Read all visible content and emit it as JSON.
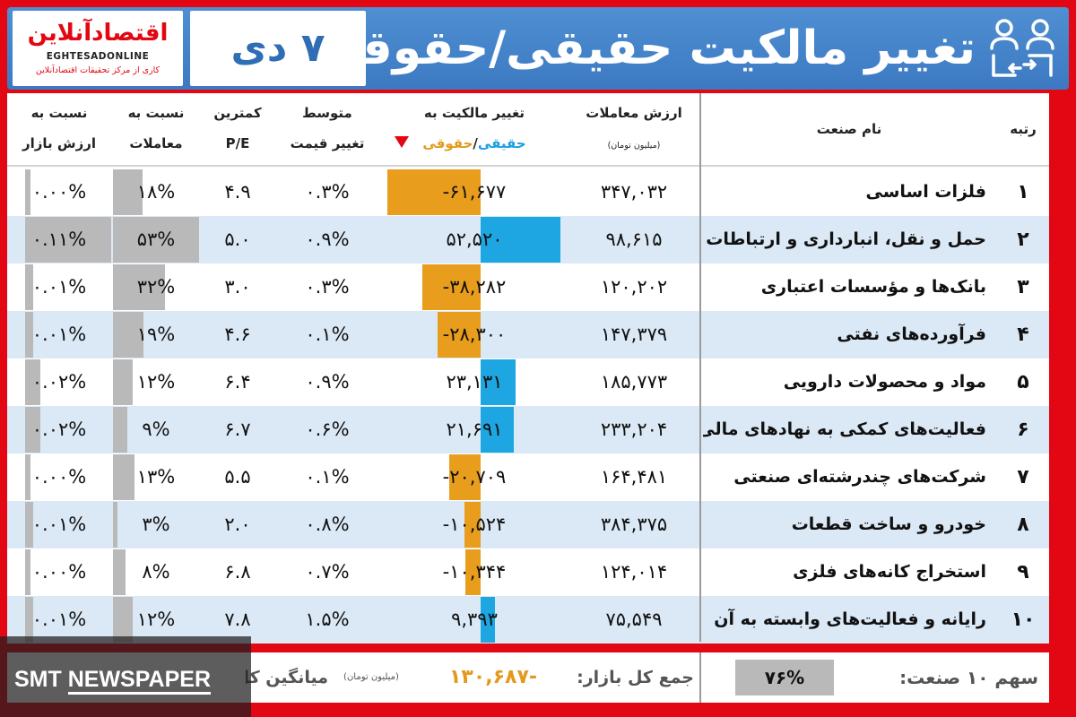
{
  "header": {
    "logo_main": "اقتصادآنلاین",
    "logo_latin": "EGHTESADONLINE",
    "logo_tag": "کاری از مرکز تحقیقات اقتصادآنلاین",
    "date": "۷ دی",
    "title": "تغییر مالکیت حقیقی/حقوقی",
    "icon": "ownership-transfer-icon"
  },
  "columns": {
    "rank": "رتبه",
    "industry": "نام صنعت",
    "trade_value": "ارزش معاملات",
    "trade_value_unit": "(میلیون تومان)",
    "ownership_change_l1": "تغییر مالکیت به",
    "ownership_real": "حقیقی",
    "ownership_sep": "/",
    "ownership_legal": "حقوقی",
    "avg_price_l1": "متوسط",
    "avg_price_l2": "تغییر قیمت",
    "pe_l1": "کمترین",
    "pe_l2": "P/E",
    "trade_share_l1": "نسبت به",
    "trade_share_l2": "معاملات",
    "market_share_l1": "نسبت به",
    "market_share_l2": "ارزش بازار"
  },
  "colors": {
    "real_positive": "#1ea6e2",
    "legal_negative": "#e89d1d",
    "share_bar": "#b9b9b9",
    "row_alt": "#dbe9f6",
    "frame_red": "#e30613",
    "header_blue": "#3c79c2"
  },
  "rows": [
    {
      "rank": "۱",
      "name": "فلزات اساسی",
      "trade_value": "۳۴۷,۰۳۲",
      "change": "-۶۱,۶۷۷",
      "change_value": -61677,
      "avg_price": "۰.۳%",
      "pe": "۴.۹",
      "trade_share": "۱۸%",
      "trade_share_value": 18,
      "market_share": "۰.۰۰%",
      "market_share_value": 0.0
    },
    {
      "rank": "۲",
      "name": "حمل و نقل، انبارداری و ارتباطات",
      "trade_value": "۹۸,۶۱۵",
      "change": "۵۲,۵۲۰",
      "change_value": 52520,
      "avg_price": "۰.۹%",
      "pe": "۵.۰",
      "trade_share": "۵۳%",
      "trade_share_value": 53,
      "market_share": "۰.۱۱%",
      "market_share_value": 0.11
    },
    {
      "rank": "۳",
      "name": "بانک‌ها و مؤسسات اعتباری",
      "trade_value": "۱۲۰,۲۰۲",
      "change": "-۳۸,۲۸۲",
      "change_value": -38282,
      "avg_price": "۰.۳%",
      "pe": "۳.۰",
      "trade_share": "۳۲%",
      "trade_share_value": 32,
      "market_share": "۰.۰۱%",
      "market_share_value": 0.01
    },
    {
      "rank": "۴",
      "name": "فرآورده‌های نفتی",
      "trade_value": "۱۴۷,۳۷۹",
      "change": "-۲۸,۳۰۰",
      "change_value": -28300,
      "avg_price": "۰.۱%",
      "pe": "۴.۶",
      "trade_share": "۱۹%",
      "trade_share_value": 19,
      "market_share": "۰.۰۱%",
      "market_share_value": 0.01
    },
    {
      "rank": "۵",
      "name": "مواد و محصولات دارویی",
      "trade_value": "۱۸۵,۷۷۳",
      "change": "۲۳,۱۳۱",
      "change_value": 23131,
      "avg_price": "۰.۹%",
      "pe": "۶.۴",
      "trade_share": "۱۲%",
      "trade_share_value": 12,
      "market_share": "۰.۰۲%",
      "market_share_value": 0.02
    },
    {
      "rank": "۶",
      "name": "فعالیت‌های کمکی به نهادهای مالی",
      "trade_value": "۲۳۳,۲۰۴",
      "change": "۲۱,۶۹۱",
      "change_value": 21691,
      "avg_price": "۰.۶%",
      "pe": "۶.۷",
      "trade_share": "۹%",
      "trade_share_value": 9,
      "market_share": "۰.۰۲%",
      "market_share_value": 0.02
    },
    {
      "rank": "۷",
      "name": "شرکت‌های چندرشته‌ای صنعتی",
      "trade_value": "۱۶۴,۴۸۱",
      "change": "-۲۰,۷۰۹",
      "change_value": -20709,
      "avg_price": "۰.۱%",
      "pe": "۵.۵",
      "trade_share": "۱۳%",
      "trade_share_value": 13,
      "market_share": "۰.۰۰%",
      "market_share_value": 0.0
    },
    {
      "rank": "۸",
      "name": "خودرو و ساخت قطعات",
      "trade_value": "۳۸۴,۳۷۵",
      "change": "-۱۰,۵۲۴",
      "change_value": -10524,
      "avg_price": "۰.۸%",
      "pe": "۲.۰",
      "trade_share": "۳%",
      "trade_share_value": 3,
      "market_share": "۰.۰۱%",
      "market_share_value": 0.01
    },
    {
      "rank": "۹",
      "name": "استخراج کانه‌های فلزی",
      "trade_value": "۱۲۴,۰۱۴",
      "change": "-۱۰,۳۴۴",
      "change_value": -10344,
      "avg_price": "۰.۷%",
      "pe": "۶.۸",
      "trade_share": "۸%",
      "trade_share_value": 8,
      "market_share": "۰.۰۰%",
      "market_share_value": 0.0
    },
    {
      "rank": "۱۰",
      "name": "رایانه و فعالیت‌های وابسته به آن",
      "trade_value": "۷۵,۵۴۹",
      "change": "۹,۳۹۳",
      "change_value": 9393,
      "avg_price": "۱.۵%",
      "pe": "۷.۸",
      "trade_share": "۱۲%",
      "trade_share_value": 12,
      "market_share": "۰.۰۱%",
      "market_share_value": 0.01
    }
  ],
  "footer": {
    "top10_label": "سهم ۱۰ صنعت:",
    "top10_value": "۷۶%",
    "market_total_label": "جمع کل بازار:",
    "market_total_value": "-۱۳۰,۶۸۷",
    "unit": "(میلیون تومان)",
    "average_label": "میانگین کل"
  },
  "watermark": {
    "text_a": "SMT ",
    "text_b": "NEWSPAPER"
  }
}
